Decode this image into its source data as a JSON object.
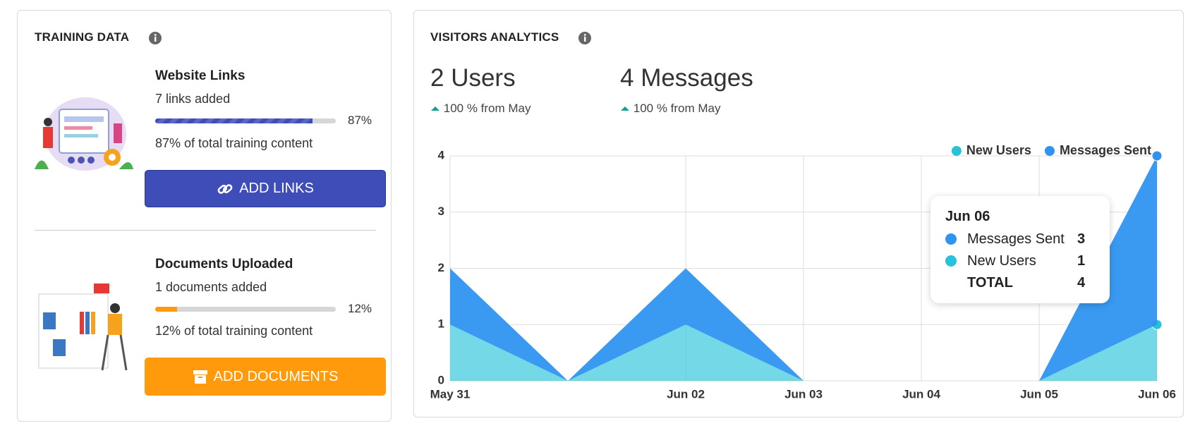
{
  "training": {
    "title": "TRAINING DATA",
    "sections": [
      {
        "title": "Website Links",
        "count_text": "7 links added",
        "progress": 87,
        "progress_label": "87%",
        "description": "87% of total training content",
        "button": "ADD LINKS"
      },
      {
        "title": "Documents Uploaded",
        "count_text": "1 documents added",
        "progress": 12,
        "progress_label": "12%",
        "description": "12% of total training content",
        "button": "ADD DOCUMENTS"
      }
    ]
  },
  "analytics": {
    "title": "VISITORS ANALYTICS",
    "stats": [
      {
        "value": "2 Users",
        "change": "100 % from May"
      },
      {
        "value": "4 Messages",
        "change": "100 % from May"
      }
    ]
  },
  "chart_data": {
    "type": "area",
    "stacked": true,
    "categories": [
      "May 31",
      null,
      "Jun 02",
      "Jun 03",
      "Jun 04",
      "Jun 05",
      "Jun 06"
    ],
    "series": [
      {
        "name": "New Users",
        "color": "#29c3d9",
        "values": [
          1,
          0,
          1,
          0,
          0,
          0,
          1
        ]
      },
      {
        "name": "Messages Sent",
        "color": "#2f93ef",
        "values": [
          1,
          0,
          1,
          0,
          0,
          0,
          3
        ]
      }
    ],
    "ylim": [
      0,
      4
    ],
    "yticks": [
      0,
      1,
      2,
      3,
      4
    ],
    "grid": true,
    "legend": "top-right",
    "tooltip": {
      "total_label": "TOTAL",
      "total": 4
    }
  }
}
